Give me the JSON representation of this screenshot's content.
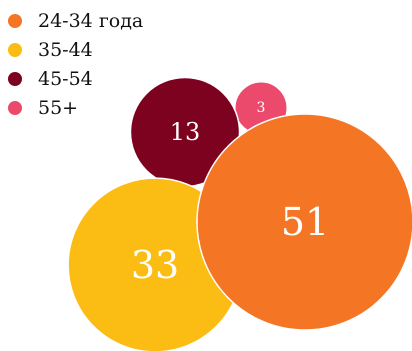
{
  "chart_data": {
    "type": "bubble",
    "series": [
      {
        "name": "24-34 года",
        "value": 51,
        "color": "#F47523"
      },
      {
        "name": "35-44",
        "value": 33,
        "color": "#FBBC14"
      },
      {
        "name": "45-54",
        "value": 13,
        "color": "#7D0220"
      },
      {
        "name": "55+",
        "value": 3,
        "color": "#EC4A6C"
      }
    ],
    "legend_position": "top-left"
  }
}
